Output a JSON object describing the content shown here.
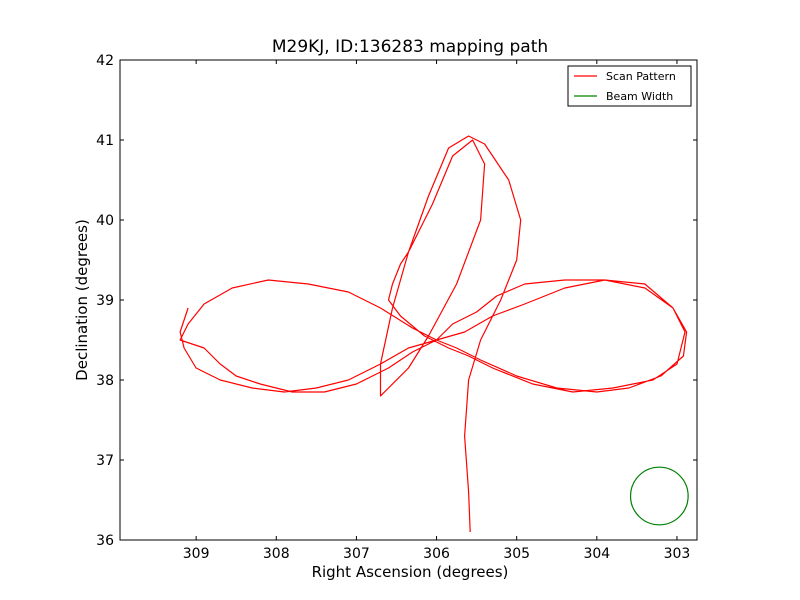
{
  "chart_data": {
    "type": "line",
    "title": "M29KJ, ID:136283 mapping path",
    "xlabel": "Right Ascension (degrees)",
    "ylabel": "Declination (degrees)",
    "xlim": [
      309.95,
      302.75
    ],
    "ylim": [
      36,
      42
    ],
    "x_inverted": true,
    "xticks": [
      309,
      308,
      307,
      306,
      305,
      304,
      303
    ],
    "yticks": [
      36,
      37,
      38,
      39,
      40,
      41,
      42
    ],
    "grid": false,
    "legend_position": "upper right",
    "series": [
      {
        "name": "Scan Pattern",
        "color": "#ff0000",
        "x": [
          309.1,
          309.2,
          309.15,
          309.0,
          308.7,
          308.3,
          307.9,
          307.5,
          307.1,
          306.7,
          306.35,
          306.0,
          305.65,
          305.3,
          304.9,
          304.4,
          303.9,
          303.4,
          303.05,
          302.88,
          302.92,
          303.2,
          303.6,
          304.0,
          304.5,
          305.0,
          305.45,
          305.75,
          306.0,
          306.3,
          306.7,
          307.1,
          307.6,
          308.1,
          308.55,
          308.9,
          309.1,
          309.2,
          309.05,
          308.9,
          308.7,
          308.5,
          308.2,
          307.8,
          307.4,
          307.0,
          306.6,
          306.3,
          306.0,
          305.8,
          305.5,
          305.25,
          304.9,
          304.4,
          303.9,
          303.4,
          303.05,
          302.9,
          303.0,
          303.3,
          303.8,
          304.3,
          304.8,
          305.3,
          305.6,
          305.85,
          306.15,
          306.45,
          306.6,
          306.55,
          306.45,
          306.35,
          306.25,
          306.05,
          305.8,
          305.55,
          305.4,
          305.45,
          305.75,
          306.1,
          306.35,
          306.6,
          306.7,
          306.7,
          306.55,
          306.35,
          306.1,
          305.85,
          305.6,
          305.4,
          305.1,
          304.95,
          305.0,
          305.2,
          305.45,
          305.6,
          305.65,
          305.6,
          305.58
        ],
        "y": [
          38.9,
          38.6,
          38.4,
          38.15,
          38.0,
          37.9,
          37.85,
          37.9,
          38.0,
          38.2,
          38.4,
          38.5,
          38.6,
          38.8,
          38.95,
          39.15,
          39.25,
          39.2,
          38.9,
          38.6,
          38.3,
          38.05,
          37.9,
          37.85,
          37.9,
          38.05,
          38.25,
          38.4,
          38.5,
          38.65,
          38.9,
          39.1,
          39.2,
          39.25,
          39.15,
          38.95,
          38.7,
          38.5,
          38.45,
          38.4,
          38.2,
          38.05,
          37.95,
          37.85,
          37.85,
          37.95,
          38.15,
          38.35,
          38.5,
          38.7,
          38.85,
          39.05,
          39.2,
          39.25,
          39.25,
          39.15,
          38.9,
          38.6,
          38.2,
          38.0,
          37.9,
          37.85,
          37.95,
          38.15,
          38.3,
          38.4,
          38.55,
          38.8,
          39.0,
          39.2,
          39.45,
          39.6,
          39.8,
          40.2,
          40.8,
          41.0,
          40.7,
          40.0,
          39.2,
          38.55,
          38.15,
          37.9,
          37.8,
          38.2,
          38.9,
          39.6,
          40.3,
          40.9,
          41.05,
          40.95,
          40.5,
          40.0,
          39.5,
          39.0,
          38.5,
          38.0,
          37.3,
          36.6,
          36.1
        ]
      },
      {
        "name": "Beam Width",
        "color": "#008000",
        "shape": "circle",
        "center": [
          303.22,
          36.55
        ],
        "radius_deg_y": 0.36
      }
    ]
  }
}
